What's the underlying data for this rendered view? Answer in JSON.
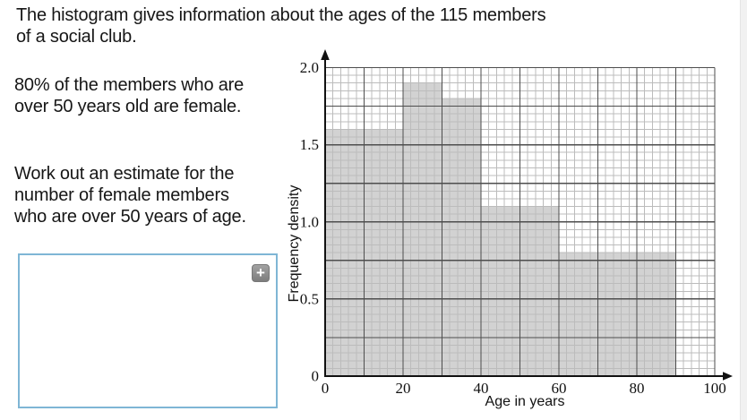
{
  "problem": {
    "intro_lines": [
      "The histogram gives information about the ages of the 115 members",
      "of a social club."
    ],
    "fact_lines": [
      "80% of the members who are",
      "over 50 years old are female."
    ],
    "question_lines": [
      "Work out an estimate for the",
      "number of female members",
      "who are over 50 years of age."
    ]
  },
  "answer_box": {
    "value": "",
    "expand_icon_glyph": "+"
  },
  "chart_data": {
    "type": "bar",
    "subtype": "histogram",
    "title": "",
    "xlabel": "Age in years",
    "ylabel": "Frequency density",
    "xlim": [
      0,
      100
    ],
    "ylim": [
      0,
      2.0
    ],
    "x_ticks": [
      0,
      20,
      40,
      60,
      80,
      100
    ],
    "y_ticks": [
      "0",
      "0.5",
      "1.0",
      "1.5",
      "2.0"
    ],
    "y_tick_values": [
      0,
      0.5,
      1.0,
      1.5,
      2.0
    ],
    "minor_grid": {
      "x_step": 2,
      "y_step": 0.05
    },
    "major_grid": {
      "x_step": 10,
      "y_step": 0.25
    },
    "grid": "on",
    "legend": "none",
    "bins": [
      {
        "from": 0,
        "to": 20,
        "frequency_density": 1.6
      },
      {
        "from": 20,
        "to": 30,
        "frequency_density": 1.9
      },
      {
        "from": 30,
        "to": 40,
        "frequency_density": 1.8
      },
      {
        "from": 40,
        "to": 60,
        "frequency_density": 1.1
      },
      {
        "from": 60,
        "to": 90,
        "frequency_density": 0.8
      }
    ],
    "colors": {
      "bar_fill": "#d2d2d2",
      "minor_grid": "#bcbcbc",
      "major_grid": "#4e4e4e",
      "axis": "#111111"
    }
  }
}
